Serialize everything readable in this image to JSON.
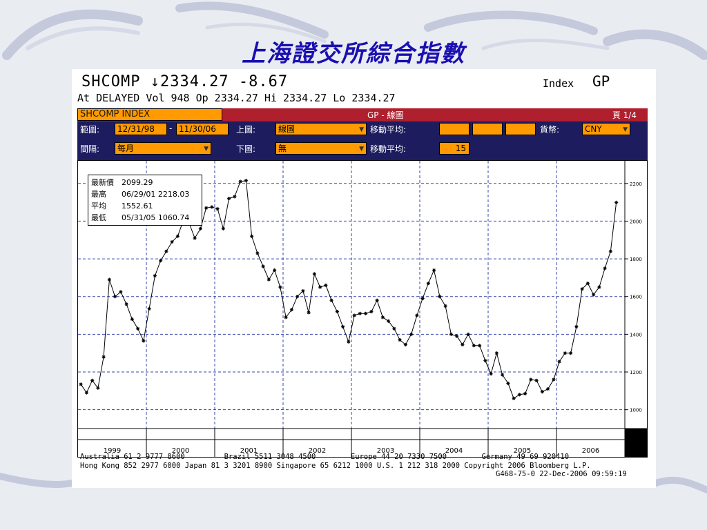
{
  "slide": {
    "title": "上海證交所綜合指數"
  },
  "header": {
    "ticker_line": "SHCOMP ↓2334.27 -8.67",
    "quote_line": "At DELAYED Vol 948 Op 2334.27 Hi 2334.27 Lo 2334.27",
    "index_label": "Index",
    "function": "GP"
  },
  "toolbar": {
    "security": "SHCOMP INDEX",
    "chart_title": "GP - 線圖",
    "page": "頁 1/4",
    "range_label": "範圍:",
    "range_start": "12/31/98",
    "range_sep": "-",
    "range_end": "11/30/06",
    "upper_label": "上圖:",
    "upper_value": "線圖",
    "ma_label_1": "移動平均:",
    "currency_label": "貨幣:",
    "currency_value": "CNY",
    "period_label": "間隔:",
    "period_value": "每月",
    "lower_label": "下圖:",
    "lower_value": "無",
    "ma_label_2": "移動平均:",
    "ma_value": "15"
  },
  "infobox": {
    "last_label": "最新價",
    "last_value": "2099.29",
    "high_label": "最高",
    "high_value": "06/29/01 2218.03",
    "avg_label": "平均",
    "avg_value": "1552.61",
    "low_label": "最低",
    "low_value": "05/31/05 1060.74"
  },
  "footer": {
    "line1": "Australia 61 2 9777 8600         Brazil 5511 3048 4500        Europe 44 20 7330 7500        Germany 49 69 920410",
    "line2": "Hong Kong 852 2977 6000 Japan 81 3 3201 8900 Singapore 65 6212 1000 U.S. 1 212 318 2000 Copyright 2006 Bloomberg L.P.",
    "line3": "G468-75-0 22-Dec-2006 09:59:19"
  },
  "colors": {
    "title": "#1a0fb0",
    "red_bar": "#b01f2e",
    "navy_bar": "#1c1c5e",
    "field": "#ff9a00",
    "grid": "#3344aa",
    "line": "#000000"
  },
  "chart_data": {
    "type": "line",
    "title": "",
    "xlabel": "",
    "ylabel": "",
    "x_start": "1999-01",
    "x_frequency": "monthly",
    "x_tick_labels": [
      "1999",
      "2000",
      "2001",
      "2002",
      "2003",
      "2004",
      "2005",
      "2006"
    ],
    "y_tick_labels": [
      "1000",
      "1200",
      "1400",
      "1600",
      "1800",
      "2000",
      "2200"
    ],
    "ylim": [
      900,
      2320
    ],
    "grid": true,
    "markers": "asterisk",
    "series": [
      {
        "name": "",
        "values": [
          1135,
          1090,
          1155,
          1115,
          1280,
          1690,
          1600,
          1625,
          1560,
          1480,
          1430,
          1365,
          1535,
          1710,
          1790,
          1840,
          1890,
          1920,
          2005,
          1990,
          1910,
          1960,
          2070,
          2075,
          2065,
          1960,
          2120,
          2130,
          2210,
          2215,
          1920,
          1830,
          1760,
          1690,
          1740,
          1650,
          1490,
          1530,
          1600,
          1630,
          1515,
          1720,
          1650,
          1660,
          1580,
          1520,
          1440,
          1360,
          1500,
          1510,
          1510,
          1520,
          1580,
          1490,
          1470,
          1430,
          1370,
          1345,
          1400,
          1500,
          1590,
          1670,
          1740,
          1600,
          1550,
          1400,
          1390,
          1345,
          1400,
          1340,
          1340,
          1260,
          1190,
          1300,
          1185,
          1140,
          1060,
          1080,
          1085,
          1160,
          1155,
          1095,
          1110,
          1160,
          1255,
          1300,
          1300,
          1440,
          1640,
          1670,
          1610,
          1650,
          1750,
          1840,
          2099
        ]
      }
    ]
  }
}
